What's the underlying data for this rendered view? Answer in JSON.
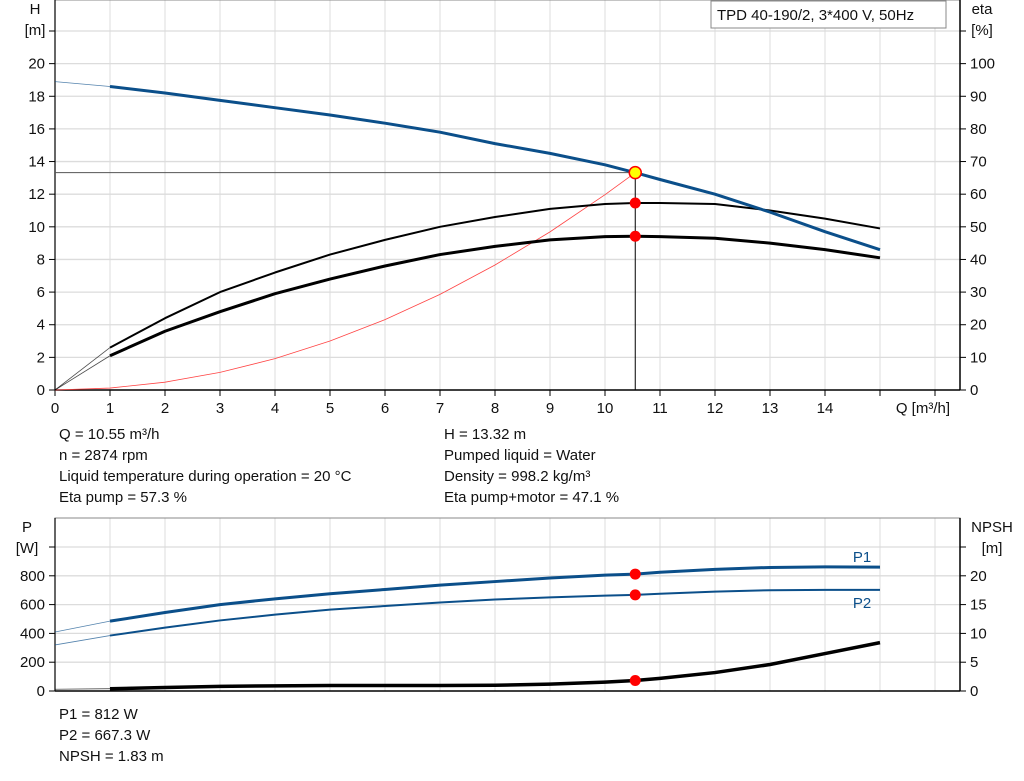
{
  "chart_data": [
    {
      "type": "line",
      "title": "TPD 40-190/2, 3*400 V, 50Hz",
      "xlabel": "Q [m³/h]",
      "ylabel": "H [m]",
      "ylabel_name": "H",
      "ylabel_unit": "[m]",
      "y2label_name": "eta",
      "y2label_unit": "[%]",
      "xlim": [
        0,
        16
      ],
      "ylim": [
        0,
        22
      ],
      "y2lim": [
        0,
        110
      ],
      "xticks": [
        0,
        1,
        2,
        3,
        4,
        5,
        6,
        7,
        8,
        9,
        10,
        11,
        12,
        13,
        14
      ],
      "yticks": [
        0,
        2,
        4,
        6,
        8,
        10,
        12,
        14,
        16,
        18,
        20
      ],
      "y2ticks": [
        0,
        10,
        20,
        30,
        40,
        50,
        60,
        70,
        80,
        90,
        100
      ],
      "grid": true,
      "series": [
        {
          "key": "H",
          "axis": "left",
          "color": "#0b4f8a",
          "x": [
            0,
            1,
            2,
            3,
            4,
            5,
            6,
            7,
            8,
            9,
            10,
            10.55,
            11,
            12,
            13,
            14,
            15
          ],
          "y": [
            18.9,
            18.6,
            18.2,
            17.75,
            17.3,
            16.85,
            16.35,
            15.8,
            15.1,
            14.5,
            13.8,
            13.32,
            12.9,
            12.0,
            10.9,
            9.7,
            8.6
          ]
        },
        {
          "key": "eta_pump",
          "axis": "right",
          "color": "#000000",
          "x": [
            0,
            1,
            2,
            3,
            4,
            5,
            6,
            7,
            8,
            9,
            10,
            10.55,
            11,
            12,
            13,
            14,
            15
          ],
          "y": [
            0,
            13,
            22,
            30,
            36,
            41.5,
            46,
            50,
            53,
            55.5,
            57,
            57.3,
            57.3,
            57,
            55,
            52.5,
            49.5
          ]
        },
        {
          "key": "eta_pump_motor",
          "axis": "right",
          "color": "#000000",
          "x": [
            0,
            1,
            2,
            3,
            4,
            5,
            6,
            7,
            8,
            9,
            10,
            10.55,
            11,
            12,
            13,
            14,
            15
          ],
          "y": [
            0,
            10.5,
            18,
            24,
            29.5,
            34,
            38,
            41.5,
            44,
            46,
            47,
            47.1,
            47,
            46.5,
            45,
            43,
            40.5
          ]
        },
        {
          "key": "system_curve",
          "axis": "left",
          "color": "#ff4444",
          "x": [
            0,
            1,
            2,
            3,
            4,
            5,
            6,
            7,
            8,
            9,
            10,
            10.55
          ],
          "y": [
            0,
            0.12,
            0.48,
            1.08,
            1.92,
            3.0,
            4.31,
            5.86,
            7.66,
            9.69,
            11.97,
            13.32
          ]
        }
      ],
      "operating_point": {
        "Q": 10.55,
        "H": 13.32,
        "eta_pump": 57.3,
        "eta_pump_motor": 47.1
      }
    },
    {
      "type": "line",
      "ylabel_name": "P",
      "ylabel_unit": "[W]",
      "y2label_name": "NPSH",
      "y2label_unit": "[m]",
      "xlim": [
        0,
        16
      ],
      "ylim": [
        0,
        1100
      ],
      "y2lim": [
        0,
        27.5
      ],
      "yticks": [
        0,
        200,
        400,
        600,
        800
      ],
      "y2ticks": [
        0,
        5,
        10,
        15,
        20
      ],
      "grid": true,
      "series": [
        {
          "name": "P1",
          "axis": "left",
          "color": "#0b4f8a",
          "x": [
            0,
            1,
            2,
            3,
            4,
            5,
            6,
            7,
            8,
            9,
            10,
            10.55,
            11,
            12,
            13,
            14,
            15
          ],
          "y": [
            410,
            485,
            545,
            600,
            640,
            675,
            705,
            735,
            760,
            785,
            805,
            812,
            825,
            845,
            858,
            862,
            860
          ]
        },
        {
          "name": "P2",
          "axis": "left",
          "color": "#0b4f8a",
          "x": [
            0,
            1,
            2,
            3,
            4,
            5,
            6,
            7,
            8,
            9,
            10,
            10.55,
            11,
            12,
            13,
            14,
            15
          ],
          "y": [
            320,
            385,
            440,
            490,
            530,
            565,
            590,
            615,
            635,
            650,
            662,
            667.3,
            675,
            690,
            700,
            702,
            702
          ]
        },
        {
          "key": "NPSH",
          "axis": "right",
          "color": "#000000",
          "x": [
            0,
            1,
            2,
            3,
            4,
            5,
            6,
            7,
            8,
            9,
            10,
            10.55,
            11,
            12,
            13,
            14,
            15
          ],
          "y": [
            0.3,
            0.4,
            0.6,
            0.8,
            0.9,
            0.95,
            0.95,
            0.95,
            1.0,
            1.2,
            1.55,
            1.83,
            2.2,
            3.2,
            4.6,
            6.5,
            8.4
          ]
        }
      ]
    }
  ],
  "info_top": {
    "left": [
      "Q = 10.55 m³/h",
      "n = 2874 rpm",
      "Liquid temperature during operation = 20 °C",
      "Eta pump = 57.3 %"
    ],
    "right": [
      "H = 13.32 m",
      "Pumped liquid = Water",
      "Density = 998.2 kg/m³",
      "Eta pump+motor = 47.1 %"
    ]
  },
  "info_bottom": [
    "P1 = 812 W",
    "P2 = 667.3 W",
    "NPSH = 1.83 m"
  ]
}
